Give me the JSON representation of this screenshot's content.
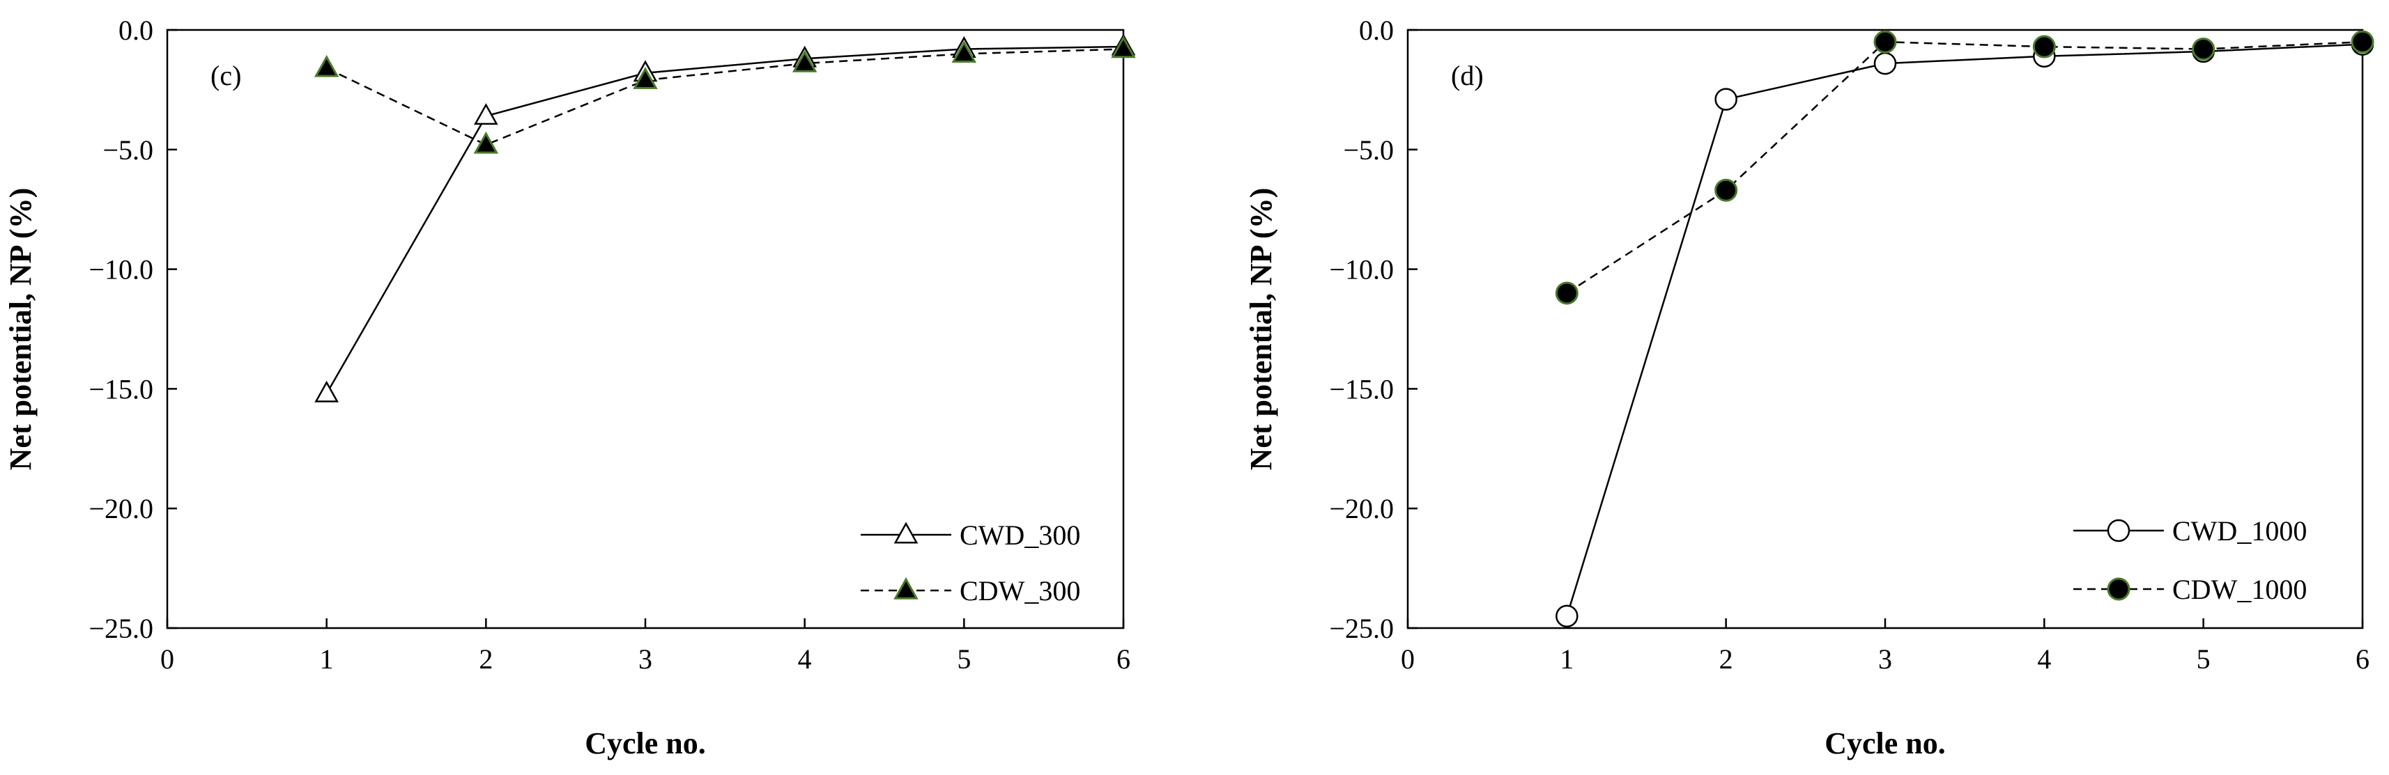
{
  "chart_data": [
    {
      "type": "line",
      "panel_label": "(c)",
      "xlabel": "Cycle no.",
      "ylabel": "Net potential, NP (%)",
      "xlim": [
        0,
        6
      ],
      "ylim": [
        -25.0,
        0.0
      ],
      "xticks": [
        "0",
        "1",
        "2",
        "3",
        "4",
        "5",
        "6"
      ],
      "yticks": [
        "0.0",
        "−5.0",
        "−10.0",
        "−15.0",
        "−20.0",
        "−25.0"
      ],
      "grid": false,
      "legend_position": "bottom-right",
      "series": [
        {
          "name": "CWD_300",
          "marker": "triangle-open",
          "line_style": "solid",
          "x": [
            1,
            2,
            3,
            4,
            5,
            6
          ],
          "y": [
            -15.2,
            -3.6,
            -1.8,
            -1.2,
            -0.8,
            -0.7
          ]
        },
        {
          "name": "CDW_300",
          "marker": "triangle-filled",
          "line_style": "dashed",
          "x": [
            1,
            2,
            3,
            4,
            5,
            6
          ],
          "y": [
            -1.6,
            -4.8,
            -2.1,
            -1.4,
            -1.0,
            -0.8
          ]
        }
      ]
    },
    {
      "type": "line",
      "panel_label": "(d)",
      "xlabel": "Cycle no.",
      "ylabel": "Net potential, NP (%)",
      "xlim": [
        0,
        6
      ],
      "ylim": [
        -25.0,
        0.0
      ],
      "xticks": [
        "0",
        "1",
        "2",
        "3",
        "4",
        "5",
        "6"
      ],
      "yticks": [
        "0.0",
        "−5.0",
        "−10.0",
        "−15.0",
        "−20.0",
        "−25.0"
      ],
      "grid": false,
      "legend_position": "bottom-right",
      "series": [
        {
          "name": "CWD_1000",
          "marker": "circle-open",
          "line_style": "solid",
          "x": [
            1,
            2,
            3,
            4,
            5,
            6
          ],
          "y": [
            -24.5,
            -2.9,
            -1.4,
            -1.1,
            -0.9,
            -0.6
          ]
        },
        {
          "name": "CDW_1000",
          "marker": "circle-filled",
          "line_style": "dashed",
          "x": [
            1,
            2,
            3,
            4,
            5,
            6
          ],
          "y": [
            -11.0,
            -6.7,
            -0.5,
            -0.7,
            -0.8,
            -0.5
          ]
        }
      ]
    }
  ],
  "colors": {
    "axis": "#000000",
    "open_marker_fill": "#ffffff",
    "filled_marker_fill": "#000000",
    "filled_marker_edge": "#4a7a2a"
  }
}
